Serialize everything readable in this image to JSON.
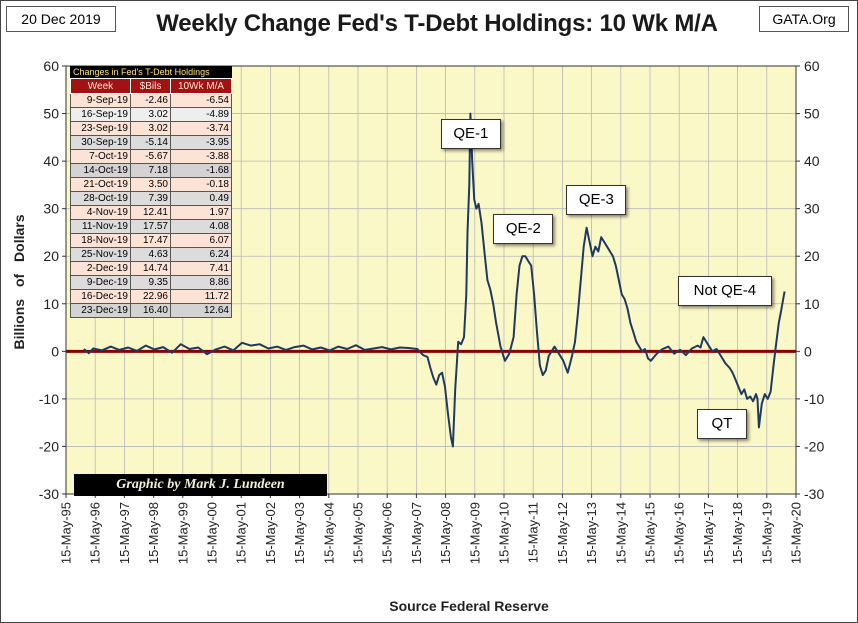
{
  "header": {
    "date": "20 Dec 2019",
    "title": "Weekly Change Fed's T-Debt Holdings: 10 Wk M/A",
    "source_site": "GATA.Org"
  },
  "credit": "Graphic by Mark J. Lundeen",
  "colors": {
    "plot_bg": "#fbf8c8",
    "series": "#1f3a60",
    "zero_line": "#8b0000",
    "table_header": "#a31212",
    "table_caption_bg": "#000000",
    "table_caption_text": "#ffe36b"
  },
  "table": {
    "caption": "Changes in Fed's T-Debt Holdings",
    "headers": [
      "Week",
      "$Bils",
      "10Wk M/A"
    ],
    "rows": [
      [
        "9-Sep-19",
        "-2.46",
        "-6.54"
      ],
      [
        "16-Sep-19",
        "3.02",
        "-4.89"
      ],
      [
        "23-Sep-19",
        "3.02",
        "-3.74"
      ],
      [
        "30-Sep-19",
        "-5.14",
        "-3.95"
      ],
      [
        "7-Oct-19",
        "-5.67",
        "-3.88"
      ],
      [
        "14-Oct-19",
        "7.18",
        "-1.68"
      ],
      [
        "21-Oct-19",
        "3.50",
        "-0.18"
      ],
      [
        "28-Oct-19",
        "7.39",
        "0.49"
      ],
      [
        "4-Nov-19",
        "12.41",
        "1.97"
      ],
      [
        "11-Nov-19",
        "17.57",
        "4.08"
      ],
      [
        "18-Nov-19",
        "17.47",
        "6.07"
      ],
      [
        "25-Nov-19",
        "4.63",
        "6.24"
      ],
      [
        "2-Dec-19",
        "14.74",
        "7.41"
      ],
      [
        "9-Dec-19",
        "9.35",
        "8.86"
      ],
      [
        "16-Dec-19",
        "22.96",
        "11.72"
      ],
      [
        "23-Dec-19",
        "16.40",
        "12.64"
      ]
    ],
    "row_shades": [
      "#fde3d6",
      "#eeeeee",
      "#fde3d6",
      "#dcdcdc",
      "#fde3d6",
      "#d3d3d3",
      "#fde3d6",
      "#dcdcdc",
      "#fde3d6",
      "#dcdcdc",
      "#fde3d6",
      "#dcdcdc",
      "#fde3d6",
      "#dcdcdc",
      "#fde3d6",
      "#d3d3d3"
    ]
  },
  "chart_data": {
    "type": "line",
    "title": "Weekly Change Fed's T-Debt Holdings: 10 Wk M/A",
    "xlabel": "Source Federal Reserve",
    "ylabel": "Billions of Dollars",
    "ylim": [
      -30,
      60
    ],
    "yticks": [
      -30,
      -20,
      -10,
      0,
      10,
      20,
      30,
      40,
      50,
      60
    ],
    "xlim": [
      1995.37,
      2020.37
    ],
    "x_tick_labels": [
      "15-May-95",
      "15-May-96",
      "15-May-97",
      "15-May-98",
      "15-May-99",
      "15-May-00",
      "15-May-01",
      "15-May-02",
      "15-May-03",
      "15-May-04",
      "15-May-05",
      "15-May-06",
      "15-May-07",
      "15-May-08",
      "15-May-09",
      "15-May-10",
      "15-May-11",
      "15-May-12",
      "15-May-13",
      "15-May-14",
      "15-May-15",
      "15-May-16",
      "15-May-17",
      "15-May-18",
      "15-May-19",
      "15-May-20"
    ],
    "grid": true,
    "zero_line": 0,
    "annotations": [
      {
        "text": "QE-1",
        "x": 2009.2,
        "y": 46
      },
      {
        "text": "QE-2",
        "x": 2011.0,
        "y": 26
      },
      {
        "text": "QE-3",
        "x": 2013.5,
        "y": 32
      },
      {
        "text": "Not QE-4",
        "x": 2017.9,
        "y": 13
      },
      {
        "text": "QT",
        "x": 2017.8,
        "y": -15
      }
    ],
    "series": [
      {
        "name": "10 Wk M/A",
        "x": [
          1995.98,
          1996.15,
          1996.3,
          1996.6,
          1996.9,
          1997.2,
          1997.5,
          1997.8,
          1998.1,
          1998.4,
          1998.7,
          1999.0,
          1999.3,
          1999.6,
          1999.9,
          2000.2,
          2000.5,
          2000.8,
          2001.1,
          2001.4,
          2001.7,
          2002.0,
          2002.3,
          2002.6,
          2002.9,
          2003.2,
          2003.5,
          2003.8,
          2004.1,
          2004.4,
          2004.7,
          2005.0,
          2005.3,
          2005.6,
          2005.9,
          2006.2,
          2006.5,
          2006.8,
          2007.1,
          2007.4,
          2007.6,
          2007.75,
          2007.85,
          2007.95,
          2008.05,
          2008.15,
          2008.25,
          2008.35,
          2008.45,
          2008.55,
          2008.62,
          2008.7,
          2008.8,
          2008.9,
          2009.0,
          2009.08,
          2009.12,
          2009.18,
          2009.22,
          2009.28,
          2009.35,
          2009.42,
          2009.5,
          2009.6,
          2009.7,
          2009.8,
          2009.9,
          2010.0,
          2010.1,
          2010.25,
          2010.4,
          2010.55,
          2010.7,
          2010.8,
          2010.9,
          2011.0,
          2011.1,
          2011.2,
          2011.3,
          2011.4,
          2011.5,
          2011.6,
          2011.7,
          2011.8,
          2011.9,
          2012.0,
          2012.1,
          2012.25,
          2012.4,
          2012.55,
          2012.7,
          2012.8,
          2012.9,
          2013.0,
          2013.1,
          2013.2,
          2013.3,
          2013.4,
          2013.5,
          2013.6,
          2013.7,
          2013.8,
          2013.9,
          2014.0,
          2014.1,
          2014.2,
          2014.3,
          2014.4,
          2014.5,
          2014.6,
          2014.7,
          2014.8,
          2014.9,
          2015.0,
          2015.1,
          2015.2,
          2015.3,
          2015.4,
          2015.6,
          2015.8,
          2016.0,
          2016.2,
          2016.4,
          2016.6,
          2016.8,
          2017.0,
          2017.1,
          2017.2,
          2017.35,
          2017.5,
          2017.65,
          2017.8,
          2017.95,
          2018.1,
          2018.2,
          2018.3,
          2018.4,
          2018.5,
          2018.6,
          2018.7,
          2018.8,
          2018.9,
          2019.0,
          2019.05,
          2019.1,
          2019.2,
          2019.3,
          2019.4,
          2019.5,
          2019.6,
          2019.7,
          2019.78,
          2019.86,
          2019.93,
          2019.98
        ],
        "y": [
          0.5,
          -0.4,
          0.6,
          0.2,
          1.0,
          0.3,
          0.8,
          0.1,
          1.2,
          0.4,
          0.9,
          -0.3,
          1.5,
          0.5,
          0.8,
          -0.6,
          0.4,
          1.0,
          0.2,
          1.8,
          1.2,
          1.5,
          0.6,
          1.0,
          0.3,
          0.9,
          1.2,
          0.4,
          0.8,
          0.2,
          1.0,
          0.5,
          1.3,
          0.3,
          0.6,
          0.9,
          0.4,
          0.8,
          0.7,
          0.5,
          -0.8,
          -1.2,
          -3.5,
          -5.5,
          -7.0,
          -5.0,
          -4.5,
          -7.5,
          -13.0,
          -18.0,
          -20.0,
          -8.0,
          2.0,
          1.5,
          3.0,
          12.0,
          25.0,
          35.0,
          50.0,
          40.0,
          32.0,
          30.0,
          31.0,
          27.0,
          21.0,
          15.0,
          13.0,
          10.0,
          6.0,
          1.0,
          -2.0,
          -0.5,
          3.0,
          12.0,
          18.0,
          20.0,
          20.0,
          19.0,
          18.0,
          12.0,
          4.0,
          -3.0,
          -5.0,
          -4.0,
          -1.0,
          0.0,
          1.0,
          -0.5,
          -2.0,
          -4.5,
          -1.0,
          2.0,
          8.0,
          15.0,
          22.0,
          26.0,
          23.0,
          20.0,
          22.0,
          21.0,
          24.0,
          23.0,
          22.0,
          21.0,
          20.0,
          18.0,
          15.0,
          12.0,
          11.0,
          9.0,
          6.0,
          4.0,
          2.0,
          1.0,
          0.0,
          0.5,
          -1.5,
          -2.0,
          -0.5,
          0.5,
          1.0,
          -0.5,
          0.3,
          -0.8,
          0.6,
          1.2,
          0.8,
          3.0,
          1.5,
          0.0,
          0.5,
          -1.0,
          -2.5,
          -3.5,
          -4.5,
          -6.0,
          -7.5,
          -9.0,
          -8.0,
          -10.0,
          -9.5,
          -10.5,
          -9.0,
          -10.0,
          -16.0,
          -11.0,
          -9.0,
          -10.0,
          -8.5,
          -3.0,
          2.0,
          6.0,
          8.5,
          11.0,
          12.6
        ]
      }
    ]
  }
}
